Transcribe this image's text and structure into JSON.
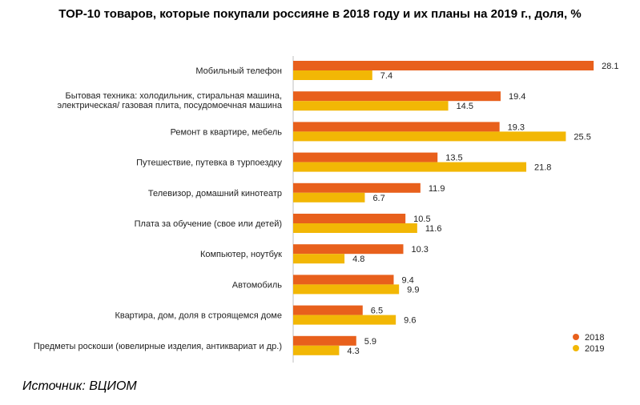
{
  "chart_data": {
    "type": "bar",
    "orientation": "horizontal",
    "title": "TOP-10 товаров, которые покупали россияне в 2018 году и их планы на 2019 г., доля, %",
    "categories": [
      [
        "Мобильный телефон"
      ],
      [
        "Бытовая техника: холодильник, стиральная машина,",
        "электрическая/ газовая плита, посудомоечная машина"
      ],
      [
        "Ремонт в квартире, мебель"
      ],
      [
        "Путешествие, путевка в турпоездку"
      ],
      [
        "Телевизор, домашний кинотеатр"
      ],
      [
        "Плата за обучение (свое или детей)"
      ],
      [
        "Компьютер, ноутбук"
      ],
      [
        "Автомобиль"
      ],
      [
        "Квартира, дом, доля в строящемся доме"
      ],
      [
        "Предметы роскоши (ювелирные изделия, антиквариат и др.)"
      ]
    ],
    "series": [
      {
        "name": "2018",
        "color": "#E8601C",
        "values": [
          28.1,
          19.4,
          19.3,
          13.5,
          11.9,
          10.5,
          10.3,
          9.4,
          6.5,
          5.9
        ]
      },
      {
        "name": "2019",
        "color": "#F2B705",
        "values": [
          7.4,
          14.5,
          25.5,
          21.8,
          6.7,
          11.6,
          4.8,
          9.9,
          9.6,
          4.3
        ]
      }
    ],
    "xlim": [
      0,
      30
    ],
    "grid": false,
    "legend": "bottom-right"
  },
  "source": "Источник: ВЦИОМ"
}
